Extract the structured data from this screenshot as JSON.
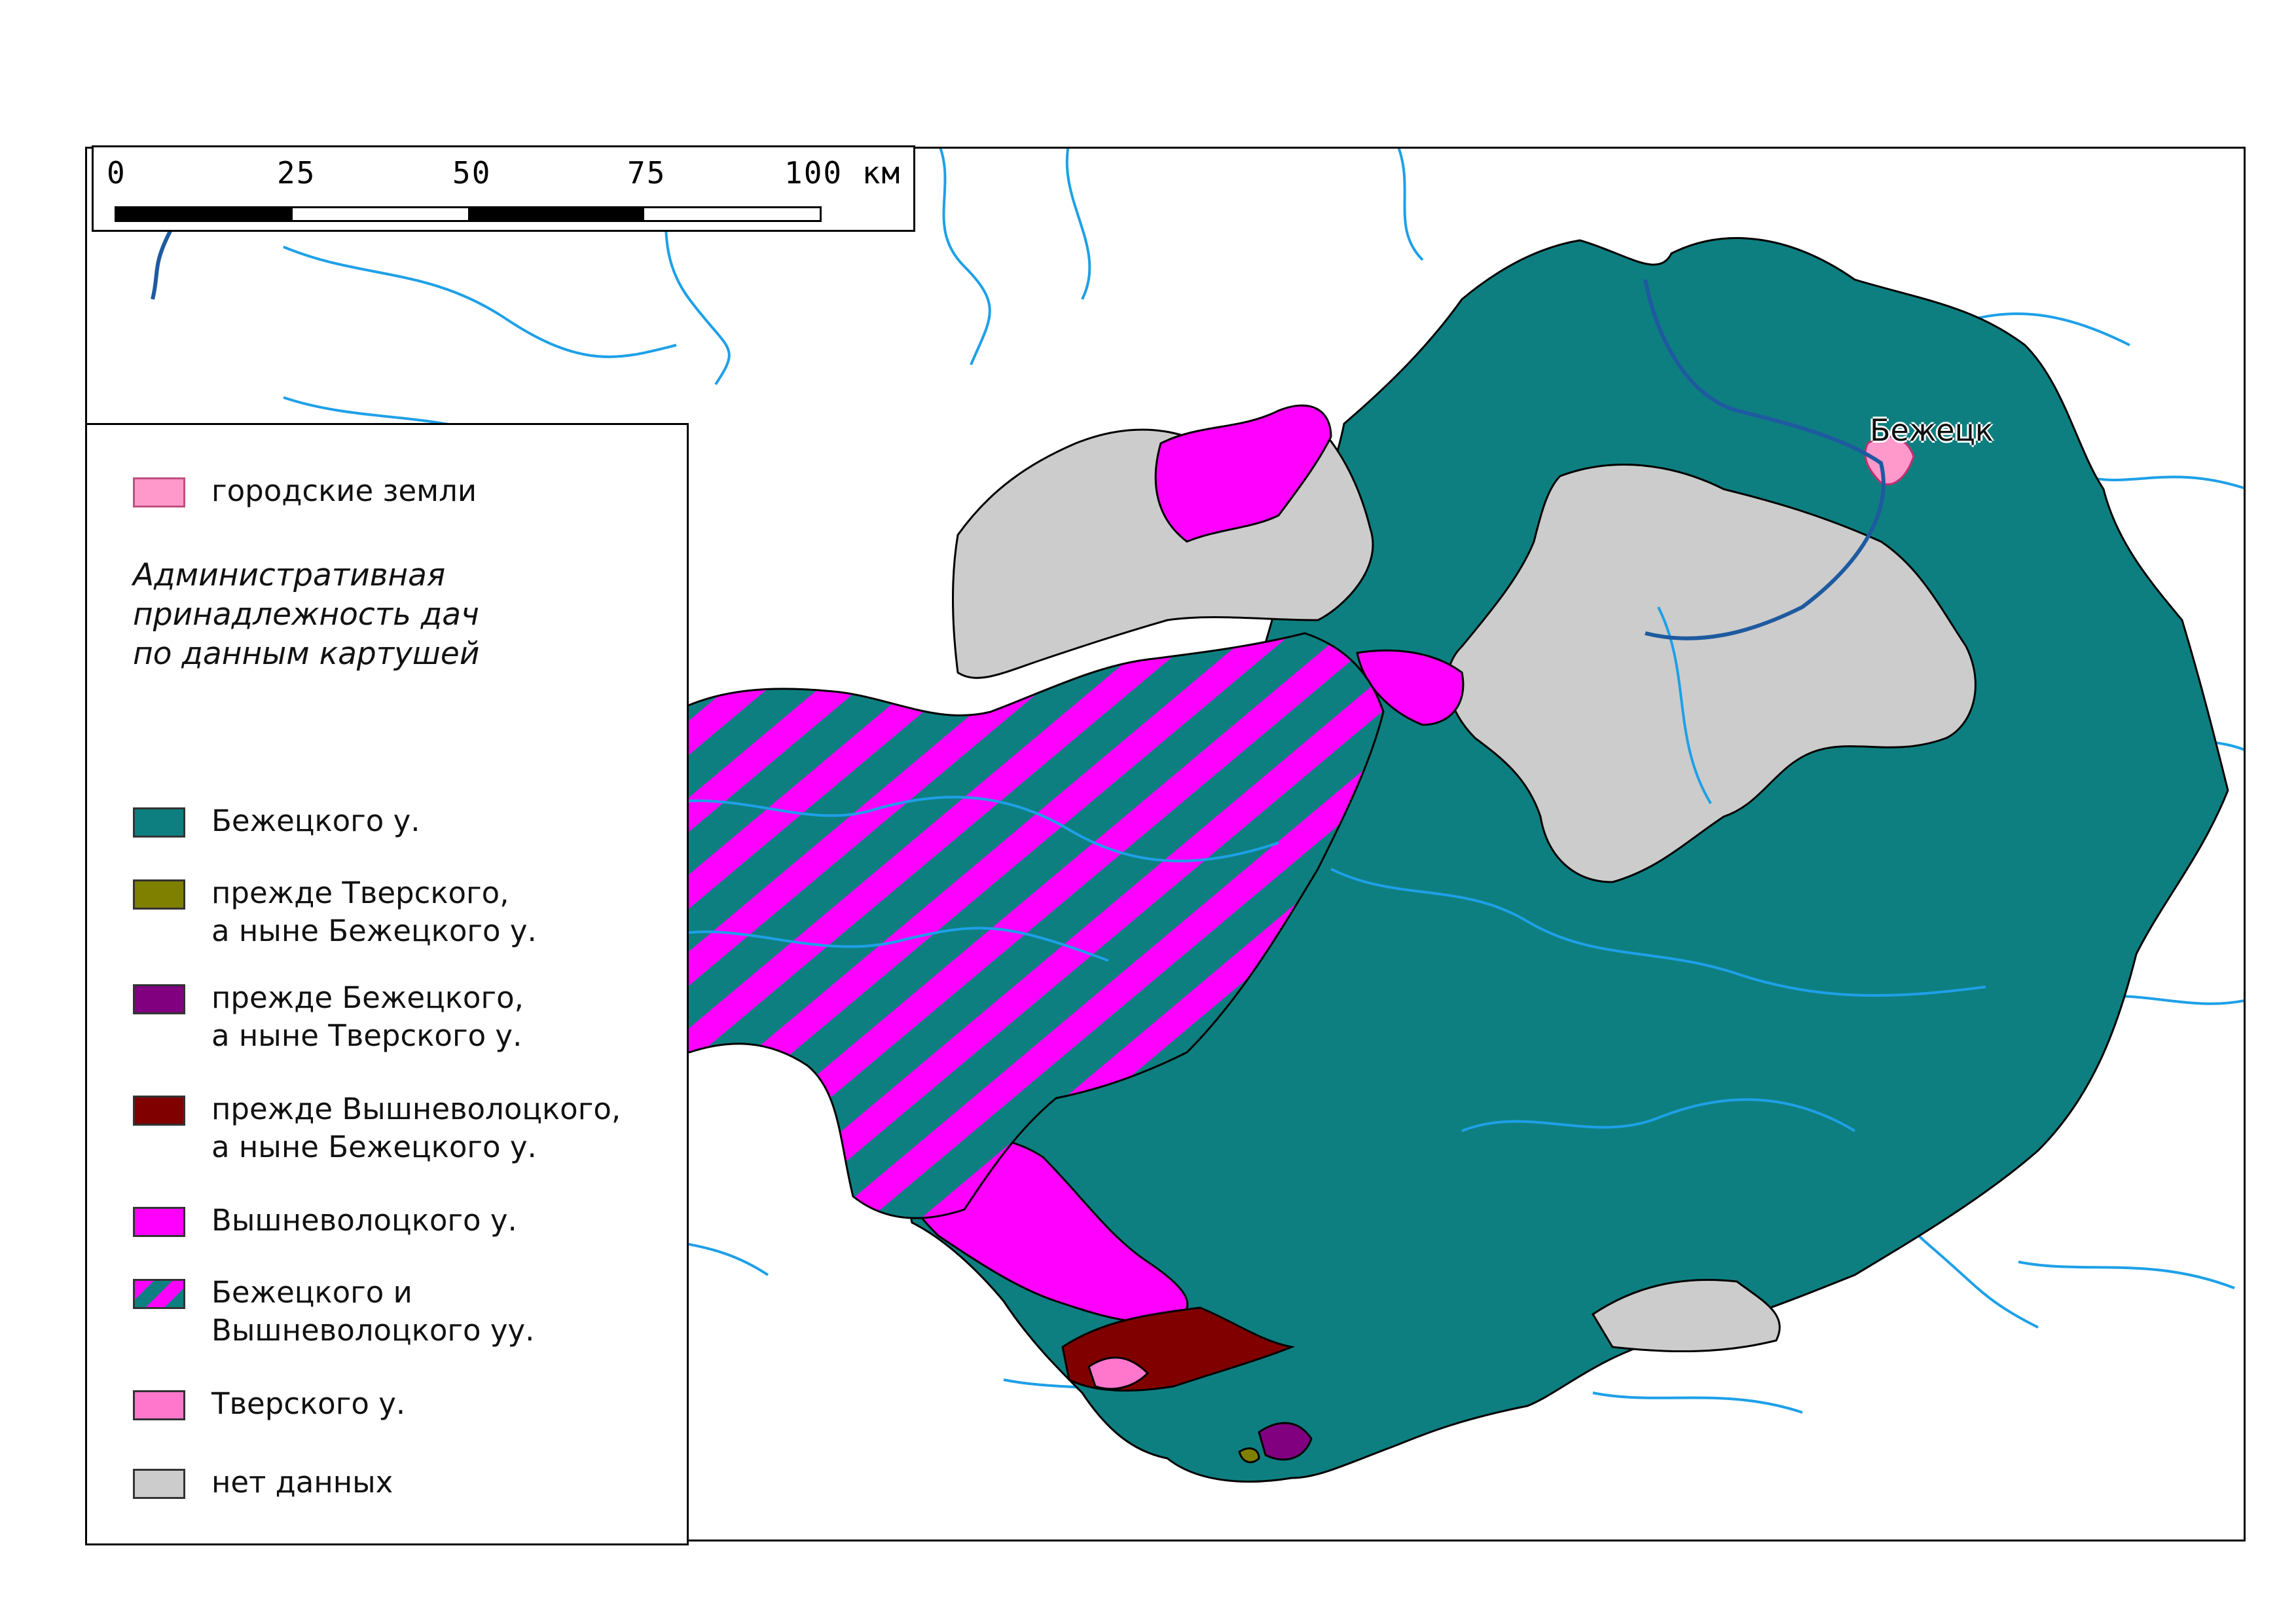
{
  "scale_bar": {
    "ticks": [
      "0",
      "25",
      "50",
      "75",
      "100 км"
    ]
  },
  "map": {
    "city_label": "Бежецк"
  },
  "legend": {
    "heading": "Административная\nпринадлежность дач\nпо данным картушей",
    "items": [
      {
        "label": "городские земли",
        "color": "#ff99cc"
      },
      {
        "label": "Бежецкого у.",
        "color": "#0e7f80"
      },
      {
        "label": "прежде Тверского,\nа ныне Бежецкого у.",
        "color": "#808000"
      },
      {
        "label": "прежде Бежецкого,\nа ныне Тверского у.",
        "color": "#800080"
      },
      {
        "label": "прежде Вышневолоцкого,\nа ныне Бежецкого у.",
        "color": "#800000"
      },
      {
        "label": "Вышневолоцкого у.",
        "color": "#ff00ff"
      },
      {
        "label": "Бежецкого и\nВышневолоцкого уу.",
        "color": "hatched"
      },
      {
        "label": "Тверского у.",
        "color": "#ff77cc"
      },
      {
        "label": "нет данных",
        "color": "#cccccc"
      }
    ]
  },
  "colors": {
    "river": "#1ea0e8",
    "main_river": "#1e5aa0",
    "border": "#000000"
  }
}
